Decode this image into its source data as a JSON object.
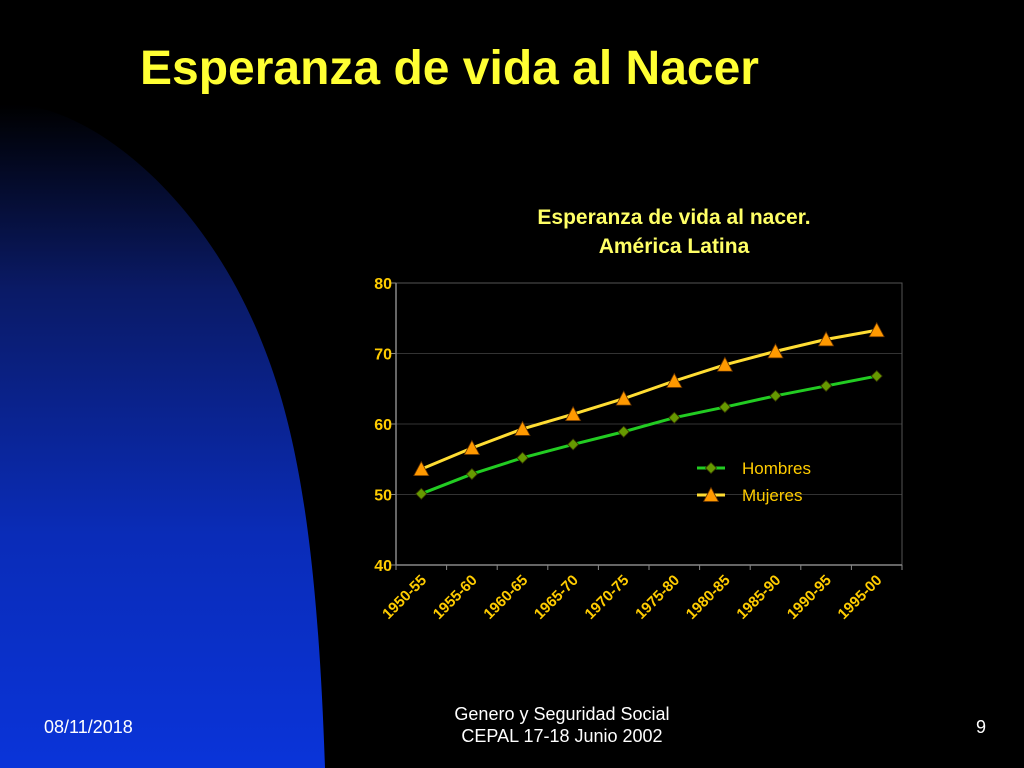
{
  "slide": {
    "title": "Esperanza de vida al Nacer",
    "footer_date": "08/11/2018",
    "footer_line1": "Genero y Seguridad Social",
    "footer_line2": "CEPAL 17-18 Junio 2002",
    "page_number": "9"
  },
  "colors": {
    "background": "#000000",
    "left_shape": "#0033CC",
    "title": "#FFFF33",
    "chart_title": "#FFFF66",
    "chart_text": "#FFCC00",
    "gridline": "#333333",
    "hombres_line": "#22CC22",
    "hombres_marker": "#669900",
    "mujeres_line": "#FFDD33",
    "mujeres_marker": "#FF9900",
    "footer": "#FFFFFF"
  },
  "chart_data": {
    "type": "line",
    "title": "Esperanza de vida al nacer.",
    "subtitle": "América Latina",
    "xlabel": "",
    "ylabel": "",
    "ylim": [
      40,
      80
    ],
    "yticks": [
      40,
      50,
      60,
      70,
      80
    ],
    "grid": true,
    "legend_position": "right",
    "categories": [
      "1950-55",
      "1955-60",
      "1960-65",
      "1965-70",
      "1970-75",
      "1975-80",
      "1980-85",
      "1985-90",
      "1990-95",
      "1995-00"
    ],
    "series": [
      {
        "name": "Hombres",
        "marker": "diamond",
        "values": [
          50.1,
          52.9,
          55.2,
          57.1,
          58.9,
          60.9,
          62.4,
          64.0,
          65.4,
          66.8
        ]
      },
      {
        "name": "Mujeres",
        "marker": "triangle",
        "values": [
          53.6,
          56.6,
          59.3,
          61.4,
          63.6,
          66.1,
          68.4,
          70.3,
          72.0,
          73.3
        ]
      }
    ]
  }
}
